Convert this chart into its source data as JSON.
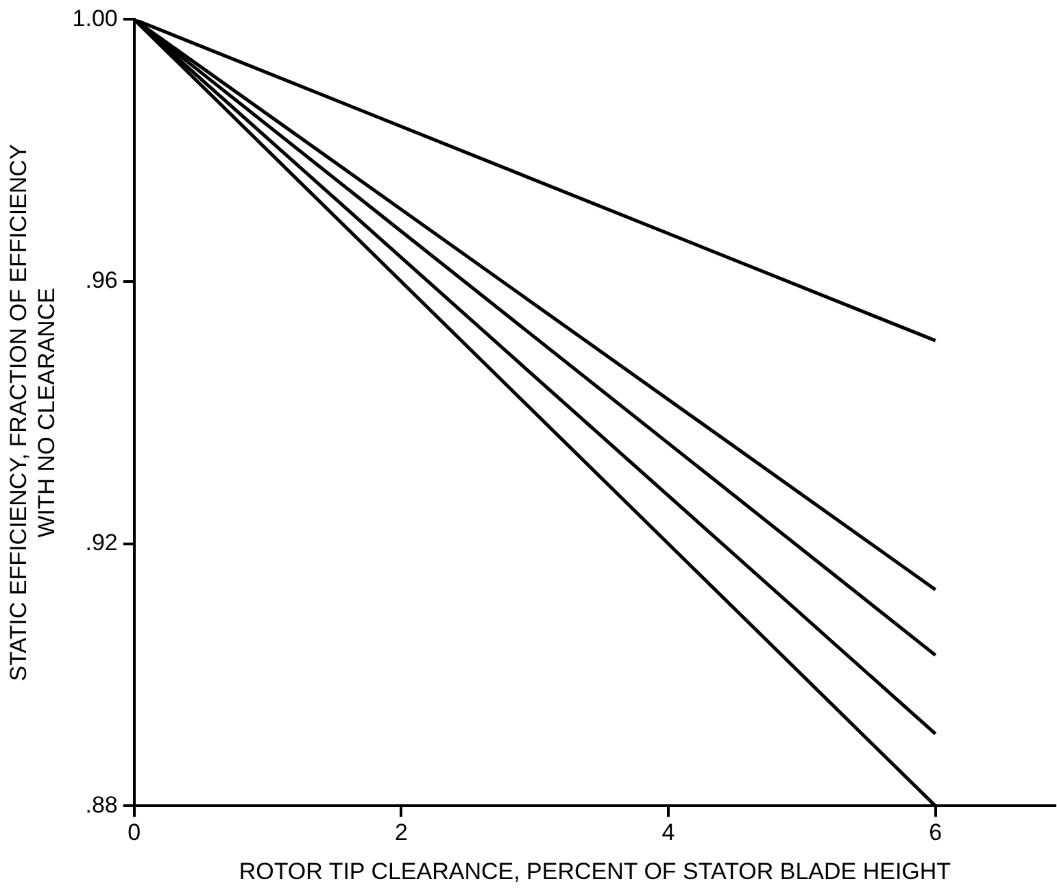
{
  "chart_data": {
    "type": "line",
    "xlabel": "ROTOR TIP CLEARANCE, PERCENT OF STATOR BLADE HEIGHT",
    "ylabel": "STATIC EFFICIENCY, FRACTION OF EFFICIENCY\nWITH NO CLEARANCE",
    "x": [
      0,
      6
    ],
    "series": [
      {
        "color": "#000000",
        "values": [
          1.0,
          0.951
        ]
      },
      {
        "color": "#000000",
        "values": [
          1.0,
          0.913
        ]
      },
      {
        "color": "#000000",
        "values": [
          1.0,
          0.903
        ]
      },
      {
        "color": "#000000",
        "values": [
          1.0,
          0.891
        ]
      },
      {
        "color": "#000000",
        "values": [
          1.0,
          0.88
        ]
      }
    ],
    "xlim": [
      0,
      6.9
    ],
    "xticks": [
      0,
      2,
      4,
      6
    ],
    "ylim": [
      0.88,
      1.0
    ],
    "yticks": [
      {
        "value": 0.88,
        "label": ".88"
      },
      {
        "value": 0.92,
        "label": ".92"
      },
      {
        "value": 0.96,
        "label": ".96"
      },
      {
        "value": 1.0,
        "label": "1.00"
      }
    ],
    "grid": false,
    "legend": false,
    "marker": "none",
    "line_style": "solid"
  }
}
